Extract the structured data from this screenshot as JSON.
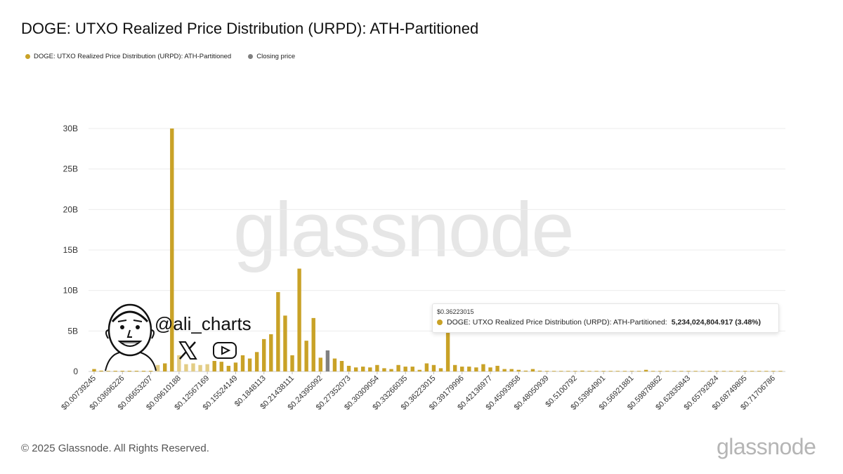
{
  "title": "DOGE: UTXO Realized Price Distribution (URPD): ATH-Partitioned",
  "legend": [
    {
      "label": "DOGE: UTXO Realized Price Distribution (URPD): ATH-Partitioned",
      "color": "#c9a227"
    },
    {
      "label": "Closing price",
      "color": "#808080"
    }
  ],
  "colors": {
    "bar": "#c9a227",
    "bar_light": "#e3cd86",
    "closing": "#808080"
  },
  "watermark": "glassnode",
  "overlay": {
    "handle": "@ali_charts",
    "icons": [
      "avatar-illustration",
      "x-logo-icon",
      "youtube-play-icon"
    ]
  },
  "tooltip": {
    "label": "$0.36223015",
    "series": "DOGE: UTXO Realized Price Distribution (URPD): ATH-Partitioned:",
    "value": "5,234,024,804.917 (3.48%)"
  },
  "footer": {
    "copyright": "© 2025 Glassnode. All Rights Reserved.",
    "brand": "glassnode"
  },
  "chart_data": {
    "type": "bar",
    "title": "DOGE: UTXO Realized Price Distribution (URPD): ATH-Partitioned",
    "xlabel": "",
    "ylabel": "",
    "ylim": [
      0,
      30000000000
    ],
    "y_ticks": [
      0,
      5000000000,
      10000000000,
      15000000000,
      20000000000,
      25000000000,
      30000000000
    ],
    "y_tick_labels": [
      "0",
      "5B",
      "10B",
      "15B",
      "20B",
      "25B",
      "30B"
    ],
    "grid": true,
    "legend_position": "top-left",
    "x_tick_labels": [
      "$0.00739245",
      "$0.03696226",
      "$0.06653207",
      "$0.09610188",
      "$0.12567169",
      "$0.15524149",
      "$0.1848113",
      "$0.21438111",
      "$0.24395092",
      "$0.27352073",
      "$0.30309054",
      "$0.33266035",
      "$0.36223015",
      "$0.39179996",
      "$0.42136977",
      "$0.45093958",
      "$0.48050939",
      "$0.5100792",
      "$0.53964901",
      "$0.56921881",
      "$0.59878862",
      "$0.62835843",
      "$0.65792824",
      "$0.68749805",
      "$0.71706786"
    ],
    "bin_start": 0.00739245,
    "bin_width": 0.00739245,
    "values": [
      300000000.0,
      100000000.0,
      50000000.0,
      100000000.0,
      100000000.0,
      200000000.0,
      100000000.0,
      100000000.0,
      200000000.0,
      800000000.0,
      1000000000.0,
      30000000000.0,
      2000000000.0,
      900000000.0,
      1000000000.0,
      800000000.0,
      900000000.0,
      1300000000.0,
      1200000000.0,
      700000000.0,
      1100000000.0,
      2000000000.0,
      1600000000.0,
      2400000000.0,
      4000000000.0,
      4600000000.0,
      9800000000.0,
      6900000000.0,
      2000000000.0,
      12700000000.0,
      3800000000.0,
      6600000000.0,
      1700000000.0,
      2600000000.0,
      1600000000.0,
      1300000000.0,
      700000000.0,
      500000000.0,
      600000000.0,
      500000000.0,
      800000000.0,
      400000000.0,
      300000000.0,
      800000000.0,
      600000000.0,
      600000000.0,
      200000000.0,
      1000000000.0,
      800000000.0,
      400000000.0,
      5234000000.0,
      800000000.0,
      600000000.0,
      600000000.0,
      500000000.0,
      900000000.0,
      500000000.0,
      700000000.0,
      300000000.0,
      300000000.0,
      200000000.0,
      100000000.0,
      300000000.0,
      100000000.0,
      50000000.0,
      20000000.0,
      50000000.0,
      50000000.0,
      50000000.0,
      100000000.0,
      20000000.0,
      20000000.0,
      20000000.0,
      20000000.0,
      20000000.0,
      20000000.0,
      50000000.0,
      20000000.0,
      200000000.0,
      20000000.0,
      20000000.0,
      20000000.0,
      20000000.0,
      20000000.0,
      20000000.0,
      20000000.0,
      20000000.0,
      20000000.0,
      20000000.0,
      20000000.0,
      20000000.0,
      20000000.0,
      20000000.0,
      20000000.0,
      20000000.0,
      20000000.0,
      20000000.0,
      20000000.0
    ],
    "closing_price_index": 33,
    "highlight_light_indices": [
      9,
      12,
      13,
      14,
      15,
      16
    ]
  }
}
